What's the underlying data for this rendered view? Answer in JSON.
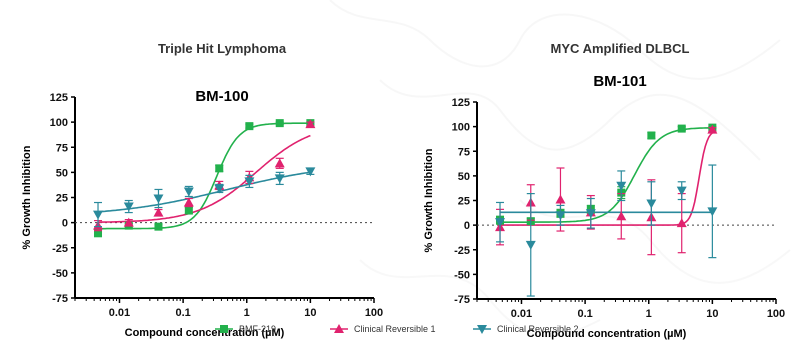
{
  "colors": {
    "BMF-219": "#22b14c",
    "Clinical Reversible 1": "#e0226e",
    "Clinical Reversible 2": "#2a8a9c"
  },
  "legend": {
    "placement": "bottom-center",
    "items": [
      {
        "name": "BMF-219",
        "marker": "square"
      },
      {
        "name": "Clinical Reversible 1",
        "marker": "triangle-up"
      },
      {
        "name": "Clinical Reversible 2",
        "marker": "triangle-down"
      }
    ]
  },
  "chart_data": [
    {
      "type": "scatter",
      "header": "Triple Hit Lymphoma",
      "title": "BM-100",
      "xlabel": "Compound concentration (µM)",
      "ylabel": "% Growth Inhibition",
      "xscale": "log",
      "xlim": [
        0.002,
        100
      ],
      "ylim": [
        -75,
        125
      ],
      "x_ticks": [
        "0.01",
        "0.1",
        "1",
        "10",
        "100"
      ],
      "y_ticks": [
        "-75",
        "-50",
        "-25",
        "0",
        "25",
        "50",
        "75",
        "100",
        "125"
      ],
      "zero_line": "dotted",
      "series": [
        {
          "name": "BMF-219",
          "points": [
            {
              "x": 0.0046,
              "y": -10,
              "err": 4
            },
            {
              "x": 0.014,
              "y": -3,
              "err": 2
            },
            {
              "x": 0.041,
              "y": -4,
              "err": 2
            },
            {
              "x": 0.123,
              "y": 12,
              "err": 3
            },
            {
              "x": 0.37,
              "y": 54,
              "err": 3
            },
            {
              "x": 1.1,
              "y": 96,
              "err": 2
            },
            {
              "x": 3.3,
              "y": 99,
              "err": 1
            },
            {
              "x": 10,
              "y": 99,
              "err": 1
            }
          ],
          "fit": {
            "bottom": -6,
            "top": 99,
            "ic50": 0.34,
            "hill": 2.5
          }
        },
        {
          "name": "Clinical Reversible 1",
          "points": [
            {
              "x": 0.0046,
              "y": -3,
              "err": 5
            },
            {
              "x": 0.014,
              "y": 0,
              "err": 3
            },
            {
              "x": 0.041,
              "y": 10,
              "err": 3
            },
            {
              "x": 0.123,
              "y": 20,
              "err": 4
            },
            {
              "x": 0.37,
              "y": 37,
              "err": 4
            },
            {
              "x": 1.1,
              "y": 45,
              "err": 6
            },
            {
              "x": 3.3,
              "y": 59,
              "err": 5
            },
            {
              "x": 10,
              "y": 98,
              "err": 2
            }
          ],
          "fit": {
            "bottom": 0,
            "top": 100,
            "ic50": 1.4,
            "hill": 0.95
          }
        },
        {
          "name": "Clinical Reversible 2",
          "points": [
            {
              "x": 0.0046,
              "y": 8,
              "err": 12
            },
            {
              "x": 0.014,
              "y": 16,
              "err": 6
            },
            {
              "x": 0.041,
              "y": 24,
              "err": 9
            },
            {
              "x": 0.123,
              "y": 31,
              "err": 5
            },
            {
              "x": 0.37,
              "y": 34,
              "err": 4
            },
            {
              "x": 1.1,
              "y": 41,
              "err": 6
            },
            {
              "x": 3.3,
              "y": 44,
              "err": 6
            },
            {
              "x": 10,
              "y": 51,
              "err": 3
            }
          ],
          "fit": {
            "bottom": 6,
            "top": 60,
            "ic50": 0.5,
            "hill": 0.5
          }
        }
      ]
    },
    {
      "type": "scatter",
      "header": "MYC Amplified DLBCL",
      "title": "BM-101",
      "xlabel": "Compound concentration (µM)",
      "ylabel": "% Growth Inhibition",
      "xscale": "log",
      "xlim": [
        0.002,
        100
      ],
      "ylim": [
        -75,
        125
      ],
      "x_ticks": [
        "0.01",
        "0.1",
        "1",
        "10",
        "100"
      ],
      "y_ticks": [
        "-75",
        "-50",
        "-25",
        "0",
        "25",
        "50",
        "75",
        "100",
        "125"
      ],
      "zero_line": "dotted",
      "series": [
        {
          "name": "BMF-219",
          "points": [
            {
              "x": 0.0046,
              "y": 5,
              "err": 4
            },
            {
              "x": 0.014,
              "y": 4,
              "err": 3
            },
            {
              "x": 0.041,
              "y": 12,
              "err": 4
            },
            {
              "x": 0.123,
              "y": 16,
              "err": 4
            },
            {
              "x": 0.37,
              "y": 33,
              "err": 6
            },
            {
              "x": 1.1,
              "y": 91,
              "err": 3
            },
            {
              "x": 3.3,
              "y": 98,
              "err": 2
            },
            {
              "x": 10,
              "y": 99,
              "err": 1
            }
          ],
          "fit": {
            "bottom": 3,
            "top": 99,
            "ic50": 0.6,
            "hill": 2.2
          }
        },
        {
          "name": "Clinical Reversible 1",
          "points": [
            {
              "x": 0.0046,
              "y": -2,
              "err": 18
            },
            {
              "x": 0.014,
              "y": 23,
              "err": 18
            },
            {
              "x": 0.041,
              "y": 26,
              "err": 32
            },
            {
              "x": 0.123,
              "y": 13,
              "err": 17
            },
            {
              "x": 0.37,
              "y": 9,
              "err": 23
            },
            {
              "x": 1.1,
              "y": 8,
              "err": 38
            },
            {
              "x": 3.3,
              "y": 2,
              "err": 30
            },
            {
              "x": 10,
              "y": 97,
              "err": 2
            }
          ],
          "fit": {
            "bottom": 0,
            "top": 97,
            "ic50": 6.2,
            "hill": 7
          }
        },
        {
          "name": "Clinical Reversible 2",
          "points": [
            {
              "x": 0.0046,
              "y": 3,
              "err": 20
            },
            {
              "x": 0.014,
              "y": -20,
              "err": 52
            },
            {
              "x": 0.041,
              "y": 10,
              "err": 10
            },
            {
              "x": 0.123,
              "y": 12,
              "err": 15
            },
            {
              "x": 0.37,
              "y": 40,
              "err": 15
            },
            {
              "x": 1.1,
              "y": 22,
              "err": 22
            },
            {
              "x": 3.3,
              "y": 35,
              "err": 9
            },
            {
              "x": 10,
              "y": 14,
              "err": 47
            }
          ],
          "fit": {
            "bottom": 13,
            "top": 13,
            "ic50": 1,
            "hill": 1
          }
        }
      ]
    }
  ]
}
